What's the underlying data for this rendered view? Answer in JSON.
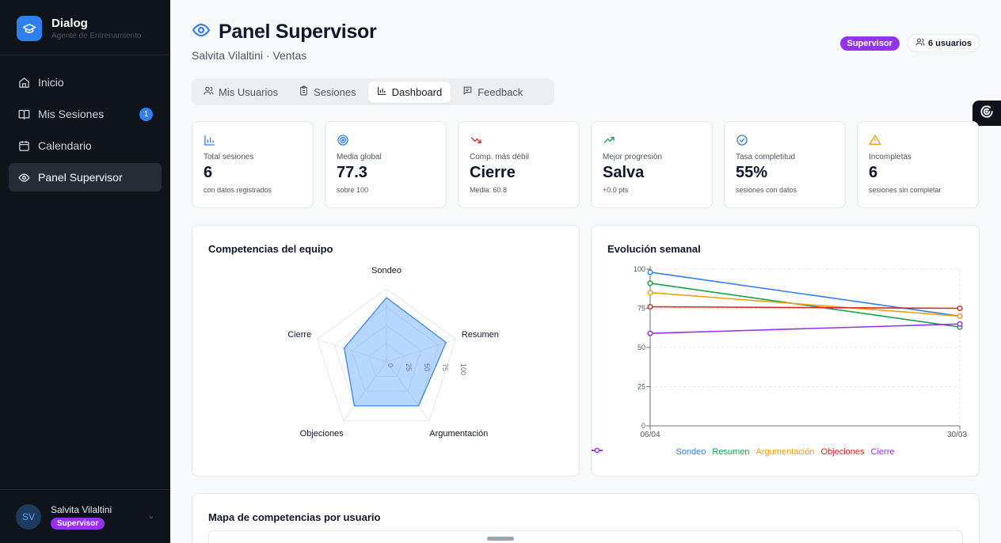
{
  "brand": {
    "title": "Dialog",
    "subtitle": "Agente de Entrenamiento"
  },
  "nav": [
    {
      "label": "Inicio",
      "icon": "home-icon"
    },
    {
      "label": "Mis Sesiones",
      "icon": "book-icon",
      "badge": "1"
    },
    {
      "label": "Calendario",
      "icon": "calendar-icon"
    },
    {
      "label": "Panel Supervisor",
      "icon": "eye-icon",
      "active": true
    }
  ],
  "user": {
    "initials": "SV",
    "name": "Salvita Vilaltini",
    "role": "Supervisor"
  },
  "header": {
    "title": "Panel Supervisor",
    "subtitle": "Salvita Vilaltini · Ventas",
    "role_badge": "Supervisor",
    "users_badge": "6 usuarios"
  },
  "tabs": [
    {
      "label": "Mis Usuarios",
      "icon": "users-icon"
    },
    {
      "label": "Sesiones",
      "icon": "clipboard-icon"
    },
    {
      "label": "Dashboard",
      "icon": "bar-chart-icon",
      "active": true
    },
    {
      "label": "Feedback",
      "icon": "message-icon"
    }
  ],
  "stats": [
    {
      "label": "Total sesiones",
      "value": "6",
      "note": "con datos registrados",
      "icon": "bar-chart-icon",
      "color": "#2f80ed"
    },
    {
      "label": "Media global",
      "value": "77.3",
      "note": "sobre 100",
      "icon": "target-icon",
      "color": "#2f80ed"
    },
    {
      "label": "Comp. más débil",
      "value": "Cierre",
      "note": "Media: 60.8",
      "icon": "trending-down-icon",
      "color": "#dc2626"
    },
    {
      "label": "Mejor progresión",
      "value": "Salva",
      "note": "+0.0 pts",
      "icon": "trending-up-icon",
      "color": "#16a34a"
    },
    {
      "label": "Tasa completitud",
      "value": "55%",
      "note": "sesiones con datos",
      "icon": "check-circle-icon",
      "color": "#2f80ed"
    },
    {
      "label": "Incompletas",
      "value": "6",
      "note": "sesiones sin completar",
      "icon": "alert-triangle-icon",
      "color": "#f59e0b"
    }
  ],
  "radar_panel": {
    "title": "Competencias del equipo"
  },
  "line_panel": {
    "title": "Evolución semanal"
  },
  "map_panel": {
    "title": "Mapa de competencias por usuario"
  },
  "chart_data": [
    {
      "type": "radar",
      "title": "Competencias del equipo",
      "axes": [
        "Sondeo",
        "Resumen",
        "Argumentación",
        "Objeciones",
        "Cierre"
      ],
      "values": [
        88,
        86,
        75,
        75,
        61
      ],
      "ticks": [
        0,
        25,
        50,
        75,
        100
      ],
      "range": [
        0,
        100
      ],
      "color": "#60a5fa"
    },
    {
      "type": "line",
      "title": "Evolución semanal",
      "x": [
        "06/04",
        "30/03"
      ],
      "ylim": [
        0,
        100
      ],
      "yticks": [
        0,
        25,
        50,
        75,
        100
      ],
      "grid": true,
      "legend": "bottom",
      "series": [
        {
          "name": "Sondeo",
          "values": [
            98,
            70
          ],
          "color": "#2f80ed"
        },
        {
          "name": "Resumen",
          "values": [
            91,
            63
          ],
          "color": "#16a34a"
        },
        {
          "name": "Argumentación",
          "values": [
            85,
            70
          ],
          "color": "#f59e0b"
        },
        {
          "name": "Objeciones",
          "values": [
            76,
            75
          ],
          "color": "#dc2626"
        },
        {
          "name": "Cierre",
          "values": [
            59,
            65
          ],
          "color": "#9333ea"
        }
      ]
    }
  ]
}
